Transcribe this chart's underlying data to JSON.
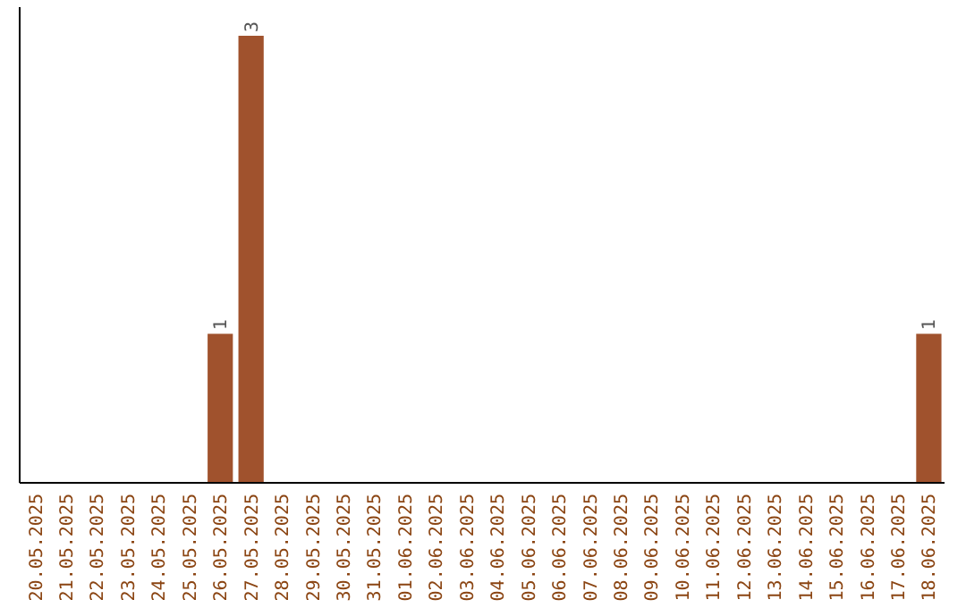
{
  "chart_data": {
    "type": "bar",
    "categories": [
      "20.05.2025",
      "21.05.2025",
      "22.05.2025",
      "23.05.2025",
      "24.05.2025",
      "25.05.2025",
      "26.05.2025",
      "27.05.2025",
      "28.05.2025",
      "29.05.2025",
      "30.05.2025",
      "31.05.2025",
      "01.06.2025",
      "02.06.2025",
      "03.06.2025",
      "04.06.2025",
      "05.06.2025",
      "06.06.2025",
      "07.06.2025",
      "08.06.2025",
      "09.06.2025",
      "10.06.2025",
      "11.06.2025",
      "12.06.2025",
      "13.06.2025",
      "14.06.2025",
      "15.06.2025",
      "16.06.2025",
      "17.06.2025",
      "18.06.2025"
    ],
    "values": [
      0,
      0,
      0,
      0,
      0,
      0,
      1,
      3,
      0,
      0,
      0,
      0,
      0,
      0,
      0,
      0,
      0,
      0,
      0,
      0,
      0,
      0,
      0,
      0,
      0,
      0,
      0,
      0,
      0,
      1
    ],
    "value_labels": [
      null,
      null,
      null,
      null,
      null,
      null,
      "1",
      "3",
      null,
      null,
      null,
      null,
      null,
      null,
      null,
      null,
      null,
      null,
      null,
      null,
      null,
      null,
      null,
      null,
      null,
      null,
      null,
      null,
      null,
      "1"
    ],
    "color": "#a0522d"
  }
}
